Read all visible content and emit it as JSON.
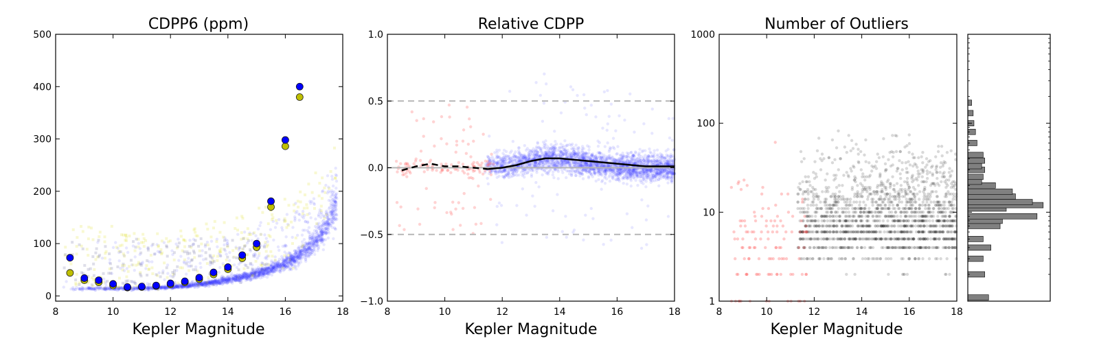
{
  "chart_data": [
    {
      "id": "cdpp",
      "type": "scatter",
      "title": "CDPP6 (ppm)",
      "xlabel": "Kepler Magnitude",
      "ylabel": "",
      "xlim": [
        8,
        18
      ],
      "ylim": [
        -10,
        500
      ],
      "xticks": [
        8,
        10,
        12,
        14,
        16,
        18
      ],
      "yticks": [
        0,
        100,
        200,
        300,
        400,
        500
      ],
      "series": [
        {
          "marker": "circle",
          "color": "#0000ff",
          "x": [
            8.5,
            9.0,
            9.5,
            10.0,
            10.5,
            11.0,
            11.5,
            12.0,
            12.5,
            13.0,
            13.5,
            14.0,
            14.5,
            15.0,
            15.5,
            16.0,
            16.5
          ],
          "y": [
            73,
            34,
            30,
            23,
            17,
            18,
            20,
            24,
            28,
            35,
            45,
            55,
            78,
            100,
            181,
            298,
            400
          ]
        },
        {
          "marker": "circle",
          "color": "#bfbf00",
          "x": [
            8.5,
            9.0,
            9.5,
            10.0,
            10.5,
            11.0,
            11.5,
            12.0,
            12.5,
            13.0,
            13.5,
            14.0,
            14.5,
            15.0,
            15.5,
            16.0,
            16.5
          ],
          "y": [
            44,
            30,
            26,
            20,
            16,
            17,
            19,
            22,
            26,
            32,
            41,
            51,
            72,
            93,
            170,
            286,
            380
          ]
        }
      ]
    },
    {
      "id": "relcdpp",
      "type": "scatter",
      "title": "Relative CDPP",
      "xlabel": "Kepler Magnitude",
      "ylabel": "",
      "xlim": [
        8,
        18
      ],
      "ylim": [
        -1.0,
        1.0
      ],
      "xticks": [
        8,
        10,
        12,
        14,
        16,
        18
      ],
      "yticks": [
        -1.0,
        -0.5,
        0.0,
        0.5,
        1.0
      ],
      "ytick_labels": [
        "−1.0",
        "−0.5",
        "0.0",
        "0.5",
        "1.0"
      ],
      "reference_lines": [
        0.5,
        -0.5
      ],
      "trend": {
        "x": [
          8.5,
          9.0,
          9.5,
          10.0,
          10.5,
          11.0,
          11.5,
          12.0,
          12.5,
          13.0,
          13.5,
          14.0,
          14.5,
          15.0,
          15.5,
          16.0,
          16.5,
          17.0,
          17.5,
          18.0
        ],
        "y": [
          -0.02,
          0.01,
          0.03,
          0.01,
          0.01,
          0.0,
          -0.01,
          0.0,
          0.02,
          0.05,
          0.07,
          0.07,
          0.06,
          0.05,
          0.04,
          0.03,
          0.02,
          0.01,
          0.01,
          0.01
        ],
        "dashed_until_x": 11.5
      }
    },
    {
      "id": "outliers",
      "type": "scatter",
      "title": "Number of Outliers",
      "xlabel": "Kepler Magnitude",
      "ylabel": "",
      "xlim": [
        8,
        18
      ],
      "ylim": [
        1,
        1000
      ],
      "yscale": "log",
      "xticks": [
        8,
        10,
        12,
        14,
        16,
        18
      ],
      "yticks": [
        1,
        10,
        100,
        1000
      ]
    },
    {
      "id": "outlier-histogram",
      "type": "bar",
      "orientation": "horizontal",
      "yscale": "log",
      "ylim": [
        1,
        1000
      ],
      "bins": [
        {
          "v": 1.1,
          "count": 27
        },
        {
          "v": 2.0,
          "count": 22
        },
        {
          "v": 3.0,
          "count": 20
        },
        {
          "v": 4.0,
          "count": 30
        },
        {
          "v": 5.0,
          "count": 20
        },
        {
          "v": 7.0,
          "count": 42
        },
        {
          "v": 8.0,
          "count": 45
        },
        {
          "v": 9.0,
          "count": 90
        },
        {
          "v": 11.0,
          "count": 50
        },
        {
          "v": 12.0,
          "count": 98
        },
        {
          "v": 13.0,
          "count": 84
        },
        {
          "v": 15.0,
          "count": 62
        },
        {
          "v": 17.0,
          "count": 58
        },
        {
          "v": 20.0,
          "count": 36
        },
        {
          "v": 22.0,
          "count": 18
        },
        {
          "v": 25.0,
          "count": 20
        },
        {
          "v": 30.0,
          "count": 22
        },
        {
          "v": 33.0,
          "count": 18
        },
        {
          "v": 38.0,
          "count": 22
        },
        {
          "v": 44.0,
          "count": 20
        },
        {
          "v": 60.0,
          "count": 12
        },
        {
          "v": 80.0,
          "count": 10
        },
        {
          "v": 100.0,
          "count": 8
        },
        {
          "v": 130.0,
          "count": 7
        },
        {
          "v": 170.0,
          "count": 5
        }
      ]
    }
  ]
}
